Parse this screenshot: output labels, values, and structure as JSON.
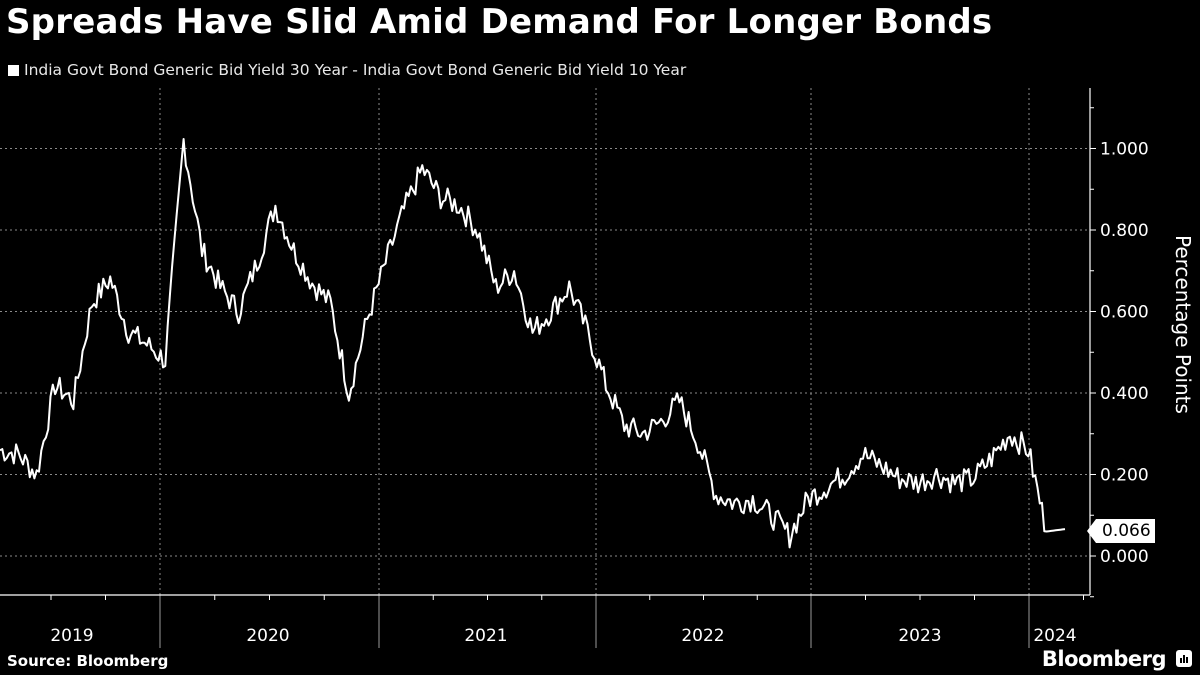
{
  "header": {
    "title": "Spreads Have Slid Amid Demand For Longer Bonds",
    "legend_label": "India Govt Bond Generic Bid Yield 30 Year - India Govt Bond Generic Bid Yield 10 Year"
  },
  "footer": {
    "source": "Source: Bloomberg",
    "brand": "Bloomberg",
    "brand_icon": "bloomberg-chart-icon"
  },
  "last_value_tag": "0.066",
  "colors": {
    "background": "#000000",
    "line": "#ffffff",
    "grid": "#8a8a8a"
  },
  "chart_data": {
    "type": "line",
    "title": "Spreads Have Slid Amid Demand For Longer Bonds",
    "xlabel": "",
    "ylabel": "Percentage Points",
    "ylim": [
      -0.1,
      1.15
    ],
    "y_ticks": [
      "1.000",
      "0.800",
      "0.600",
      "0.400",
      "0.200",
      "0.000"
    ],
    "x_ticks": [
      "2019",
      "2020",
      "2021",
      "2022",
      "2023",
      "2024"
    ],
    "grid": true,
    "legend_position": "top-left",
    "y_axis_position": "right",
    "last_value": 0.066,
    "series": [
      {
        "name": "India Govt Bond Generic Bid Yield 30 Year - India Govt Bond Generic Bid Yield 10 Year",
        "x_approx_dates": [
          "2019-05",
          "2019-06",
          "2019-07",
          "2019-08",
          "2019-09",
          "2019-10",
          "2019-11",
          "2019-12",
          "2020-01",
          "2020-02",
          "2020-03",
          "2020-04",
          "2020-05",
          "2020-06",
          "2020-07",
          "2020-08",
          "2020-09",
          "2020-10",
          "2020-11",
          "2020-12",
          "2021-01",
          "2021-02",
          "2021-03",
          "2021-04",
          "2021-05",
          "2021-06",
          "2021-07",
          "2021-08",
          "2021-09",
          "2021-10",
          "2021-11",
          "2021-12",
          "2022-01",
          "2022-02",
          "2022-03",
          "2022-04",
          "2022-05",
          "2022-06",
          "2022-07",
          "2022-08",
          "2022-09",
          "2022-10",
          "2022-11",
          "2022-12",
          "2023-01",
          "2023-02",
          "2023-03",
          "2023-04",
          "2023-05",
          "2023-06",
          "2023-07",
          "2023-08",
          "2023-09",
          "2023-10",
          "2023-11",
          "2023-12",
          "2024-01",
          "2024-02",
          "2024-03"
        ],
        "values": [
          0.26,
          0.25,
          0.2,
          0.42,
          0.38,
          0.62,
          0.68,
          0.55,
          0.52,
          0.48,
          1.02,
          0.75,
          0.66,
          0.6,
          0.72,
          0.86,
          0.75,
          0.67,
          0.62,
          0.4,
          0.58,
          0.72,
          0.85,
          0.95,
          0.88,
          0.86,
          0.8,
          0.66,
          0.7,
          0.55,
          0.6,
          0.66,
          0.55,
          0.42,
          0.32,
          0.3,
          0.33,
          0.38,
          0.28,
          0.15,
          0.13,
          0.14,
          0.1,
          0.05,
          0.14,
          0.17,
          0.2,
          0.25,
          0.22,
          0.19,
          0.18,
          0.2,
          0.18,
          0.19,
          0.24,
          0.3,
          0.26,
          0.06,
          0.066
        ]
      }
    ]
  }
}
